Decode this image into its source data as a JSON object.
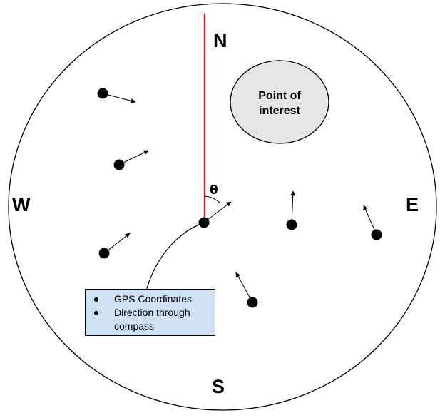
{
  "compass": {
    "north": "N",
    "south": "S",
    "east": "E",
    "west": "W"
  },
  "point_of_interest": {
    "line1": "Point of",
    "line2": "interest"
  },
  "angle_label": "θ",
  "legend": {
    "items": [
      "GPS Coordinates",
      "Direction through compass"
    ]
  },
  "colors": {
    "north_line": "#e0141b",
    "poi_fill": "#e6e6e6",
    "legend_fill": "#cfe2f3",
    "outline": "#000000"
  }
}
